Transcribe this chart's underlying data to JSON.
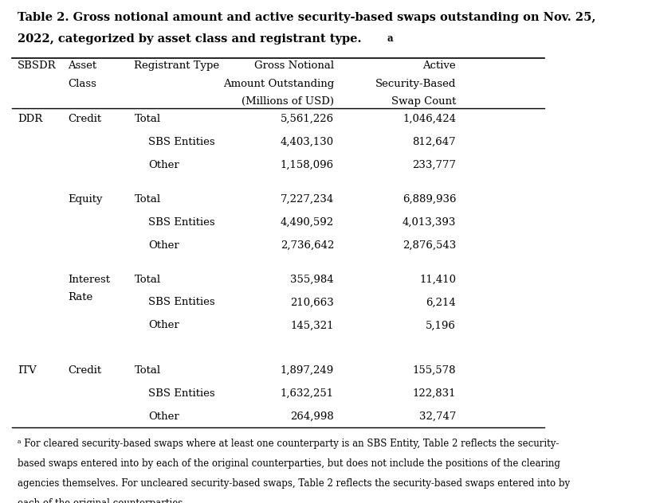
{
  "title_line1": "Table 2. Gross notional amount and active security-based swaps outstanding on Nov. 25,",
  "title_line2": "2022, categorized by asset class and registrant type.",
  "title_superscript": "a",
  "col_headers": [
    [
      "SBSDR",
      "Asset\nClass",
      "Registrant Type",
      "Gross Notional\nAmount Outstanding\n(Millions of USD)",
      "Active\nSecurity-Based\nSwap Count"
    ]
  ],
  "rows": [
    {
      "sbsdr": "DDR",
      "asset": "Credit",
      "registrant": "Total",
      "gross": "5,561,226",
      "active": "1,046,424",
      "indent": false
    },
    {
      "sbsdr": "",
      "asset": "",
      "registrant": "SBS Entities",
      "gross": "4,403,130",
      "active": "812,647",
      "indent": true
    },
    {
      "sbsdr": "",
      "asset": "",
      "registrant": "Other",
      "gross": "1,158,096",
      "active": "233,777",
      "indent": true
    },
    {
      "sbsdr": "",
      "asset": "Equity",
      "registrant": "Total",
      "gross": "7,227,234",
      "active": "6,889,936",
      "indent": false
    },
    {
      "sbsdr": "",
      "asset": "",
      "registrant": "SBS Entities",
      "gross": "4,490,592",
      "active": "4,013,393",
      "indent": true
    },
    {
      "sbsdr": "",
      "asset": "",
      "registrant": "Other",
      "gross": "2,736,642",
      "active": "2,876,543",
      "indent": true
    },
    {
      "sbsdr": "",
      "asset": "Interest\nRate",
      "registrant": "Total",
      "gross": "355,984",
      "active": "11,410",
      "indent": false
    },
    {
      "sbsdr": "",
      "asset": "",
      "registrant": "SBS Entities",
      "gross": "210,663",
      "active": "6,214",
      "indent": true
    },
    {
      "sbsdr": "",
      "asset": "",
      "registrant": "Other",
      "gross": "145,321",
      "active": "5,196",
      "indent": true
    },
    {
      "sbsdr": "ITV",
      "asset": "Credit",
      "registrant": "Total",
      "gross": "1,897,249",
      "active": "155,578",
      "indent": false
    },
    {
      "sbsdr": "",
      "asset": "",
      "registrant": "SBS Entities",
      "gross": "1,632,251",
      "active": "122,831",
      "indent": true
    },
    {
      "sbsdr": "",
      "asset": "",
      "registrant": "Other",
      "gross": "264,998",
      "active": "32,747",
      "indent": true
    }
  ],
  "footnote": "a For cleared security-based swaps where at least one counterparty is an SBS Entity, Table 2 reflects the security-\nbased swaps entered into by each of the original counterparties, but does not include the positions of the clearing\nagencies themselves. For uncleared security-based swaps, Table 2 reflects the security-based swaps entered into by\neach of the original counterparties.",
  "background_color": "#ffffff",
  "text_color": "#000000",
  "font_size": 9.5,
  "title_font_size": 10.5
}
